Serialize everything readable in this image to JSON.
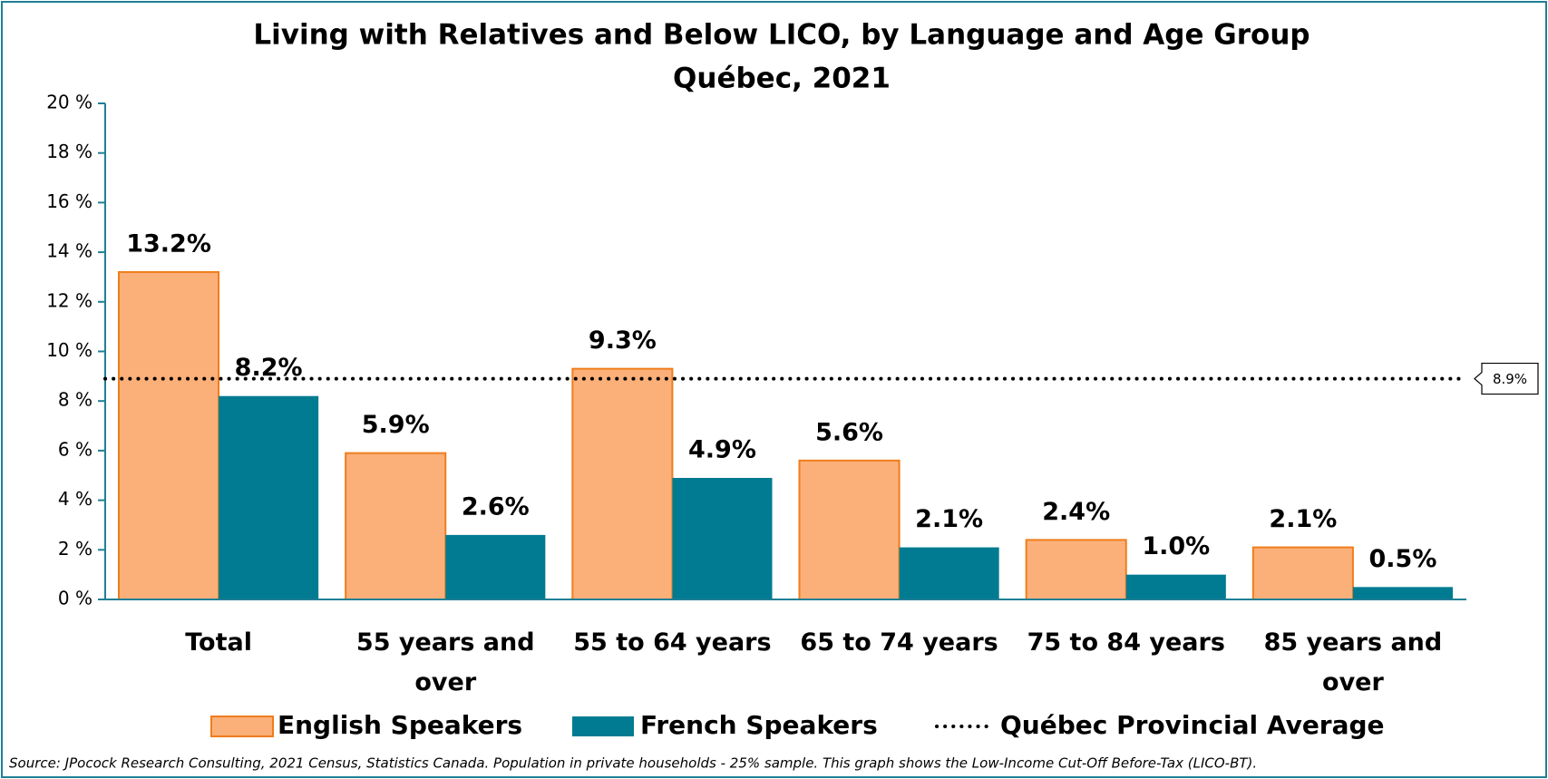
{
  "chart_data": {
    "type": "bar",
    "title": "Living with Relatives and Below LICO, by Language and Age Group",
    "subtitle": "Québec, 2021",
    "categories": [
      "Total",
      "55 years and over",
      "55 to 64 years",
      "65 to 74 years",
      "75 to 84 years",
      "85 years and over"
    ],
    "series": [
      {
        "name": "English Speakers",
        "color": "#fbb07a",
        "edge": "#f07d1d",
        "values": [
          13.2,
          5.9,
          9.3,
          5.6,
          2.4,
          2.1
        ],
        "value_labels": [
          "13.2%",
          "5.9%",
          "9.3%",
          "5.6%",
          "2.4%",
          "2.1%"
        ]
      },
      {
        "name": "French Speakers",
        "color": "#007b91",
        "values": [
          8.2,
          2.6,
          4.9,
          2.1,
          1.0,
          0.5
        ],
        "value_labels": [
          "8.2%",
          "2.6%",
          "4.9%",
          "2.1%",
          "1.0%",
          "0.5%"
        ]
      }
    ],
    "reference_line": {
      "name": "Québec Provincial Average",
      "value": 8.9,
      "label": "8.9%",
      "color": "#000000"
    },
    "ylim": [
      0,
      20
    ],
    "yticks": [
      {
        "value": 0,
        "label": "0 %"
      },
      {
        "value": 2,
        "label": "2 %"
      },
      {
        "value": 4,
        "label": "4 %"
      },
      {
        "value": 6,
        "label": "6 %"
      },
      {
        "value": 8,
        "label": "8 %"
      },
      {
        "value": 10,
        "label": "10 %"
      },
      {
        "value": 12,
        "label": "12 %"
      },
      {
        "value": 14,
        "label": "14 %"
      },
      {
        "value": 16,
        "label": "16 %"
      },
      {
        "value": 18,
        "label": "18 %"
      },
      {
        "value": 20,
        "label": "20 %"
      }
    ],
    "source": "Source: JPocock Research Consulting, 2021 Census, Statistics Canada. Population in private households - 25% sample. This graph shows the Low-Income Cut-Off Before-Tax (LICO-BT)."
  }
}
